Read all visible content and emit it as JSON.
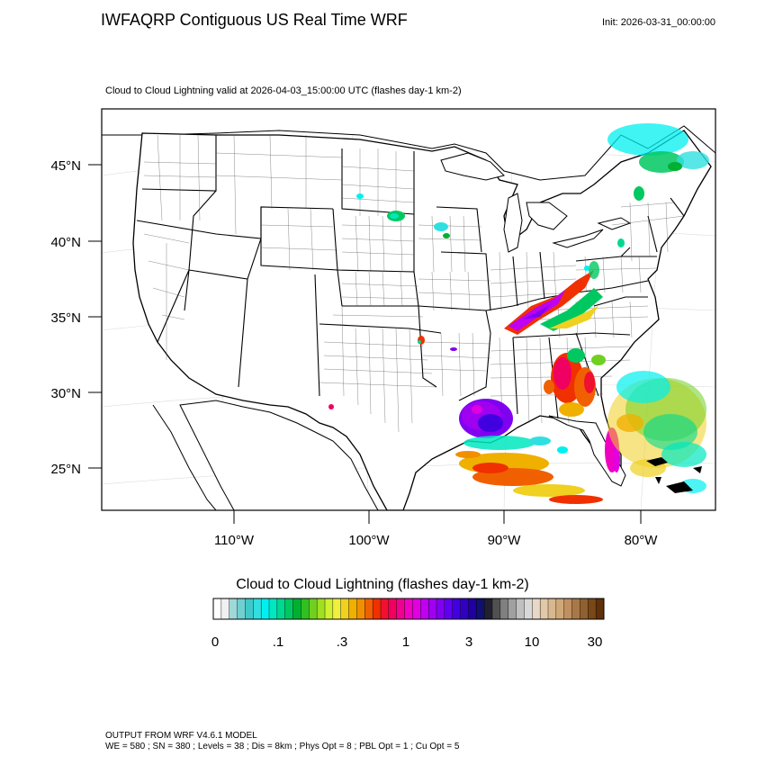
{
  "header": {
    "title": "IWFAQRP Contiguous US Real Time WRF",
    "init": "Init: 2026-03-31_00:00:00",
    "subtitle": "Cloud to Cloud Lightning valid at 2026-04-03_15:00:00 UTC   (flashes day-1 km-2)"
  },
  "map": {
    "lat_labels": [
      "45°N",
      "40°N",
      "35°N",
      "30°N",
      "25°N"
    ],
    "lon_labels": [
      "110°W",
      "100°W",
      "90°W",
      "80°W"
    ],
    "land_color": "#ffffff",
    "border_color": "#000000"
  },
  "colorbar": {
    "title": "Cloud to Cloud Lightning  (flashes day-1 km-2)",
    "labels": [
      "0",
      ".1",
      ".3",
      "1",
      "3",
      "10",
      "30"
    ],
    "colors": [
      "#ffffff",
      "#f0f0f0",
      "#9fd8d8",
      "#70d0d0",
      "#40c8c8",
      "#30e0e0",
      "#00f0f0",
      "#00e8c0",
      "#00d890",
      "#00c860",
      "#00b030",
      "#30c020",
      "#70d020",
      "#a0e020",
      "#d0f030",
      "#f0f040",
      "#f0d020",
      "#f0b000",
      "#f09000",
      "#f06000",
      "#f03000",
      "#f01030",
      "#f00060",
      "#f00090",
      "#f000c0",
      "#e000e0",
      "#c000f0",
      "#a000f0",
      "#8000f0",
      "#6000f0",
      "#4000e0",
      "#3000c0",
      "#2000a0",
      "#101070",
      "#202030",
      "#505050",
      "#808080",
      "#a0a0a0",
      "#c0c0c0",
      "#d8d8d8",
      "#e8d8c8",
      "#e0c8a8",
      "#d8b890",
      "#d0a878",
      "#c09060",
      "#a87848",
      "#906030",
      "#784818",
      "#603008"
    ]
  },
  "footer": {
    "line1": "OUTPUT FROM WRF V4.6.1 MODEL",
    "line2": "WE = 580 ; SN = 380 ; Levels = 38 ; Dis = 8km ; Phys Opt = 8 ; PBL Opt = 1 ; Cu Opt = 5"
  }
}
